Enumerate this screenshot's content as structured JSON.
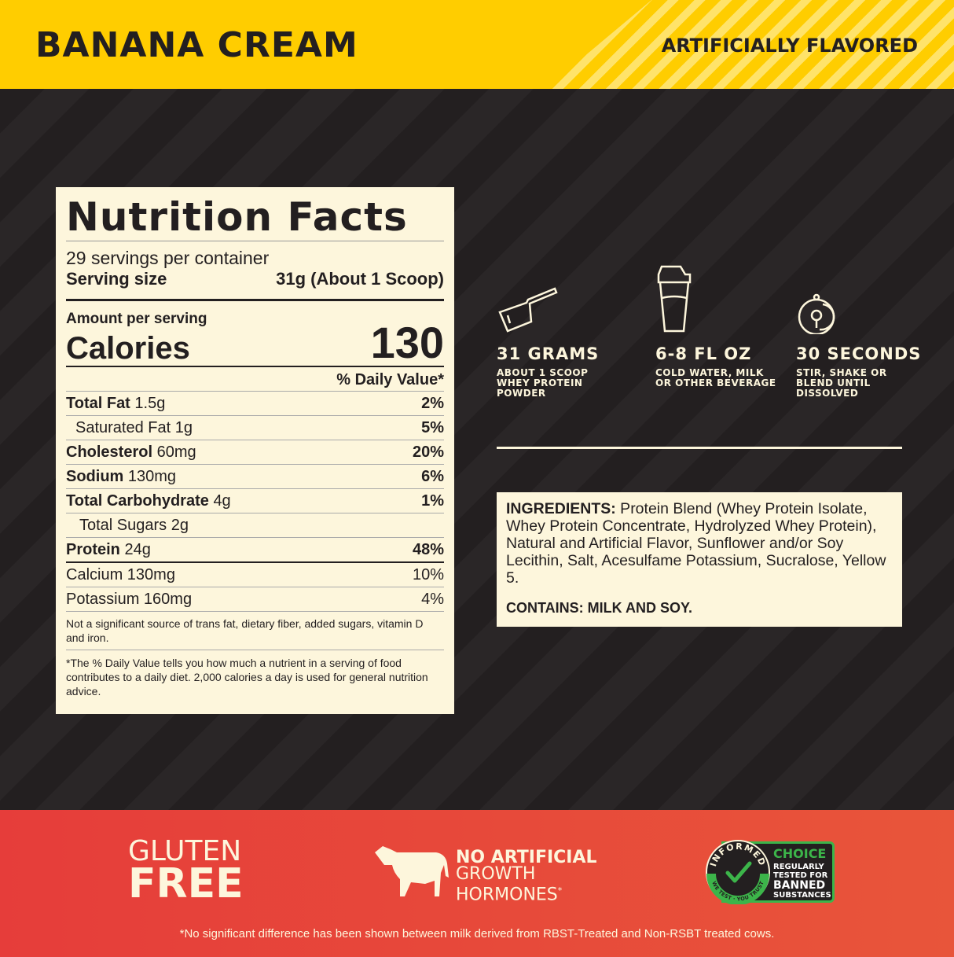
{
  "header": {
    "flavor": "BANANA CREAM",
    "flavor_note": "ARTIFICIALLY FLAVORED"
  },
  "nutrition": {
    "title": "Nutrition Facts",
    "servings": "29 servings per container",
    "serving_size_label": "Serving size",
    "serving_size": "31g (About 1 Scoop)",
    "amount_label": "Amount per serving",
    "calories_label": "Calories",
    "calories": "130",
    "dv_header": "% Daily Value*",
    "rows": [
      {
        "name": "Total Fat",
        "amount": "1.5g",
        "dv": "2%",
        "bold": true
      },
      {
        "name": "Saturated Fat",
        "amount": "1g",
        "dv": "5%",
        "bold": false
      },
      {
        "name": "Cholesterol",
        "amount": "60mg",
        "dv": "20%",
        "bold": true
      },
      {
        "name": "Sodium",
        "amount": "130mg",
        "dv": "6%",
        "bold": true
      },
      {
        "name": "Total Carbohydrate",
        "amount": "4g",
        "dv": "1%",
        "bold": true
      },
      {
        "name": "Total Sugars",
        "amount": "2g",
        "dv": "",
        "bold": false
      },
      {
        "name": "Protein",
        "amount": "24g",
        "dv": "48%",
        "bold": true
      }
    ],
    "minerals": [
      {
        "name": "Calcium 130mg",
        "dv": "10%"
      },
      {
        "name": "Potassium 160mg",
        "dv": "4%"
      }
    ],
    "note": "Not a significant source of trans fat, dietary fiber, added sugars, vitamin D and iron.",
    "footnote": "*The % Daily Value tells you how much a nutrient in a serving of food contributes to a daily diet. 2,000 calories a day is used for general nutrition advice."
  },
  "directions": [
    {
      "icon": "scoop-icon",
      "title": "31 GRAMS",
      "text": "ABOUT 1 SCOOP WHEY PROTEIN POWDER"
    },
    {
      "icon": "shaker-icon",
      "title": "6-8 FL OZ",
      "text": "COLD WATER, MILK OR OTHER BEVERAGE"
    },
    {
      "icon": "timer-icon",
      "title": "30 SECONDS",
      "text": "STIR, SHAKE OR BLEND UNTIL DISSOLVED"
    }
  ],
  "ingredients": {
    "label": "INGREDIENTS:",
    "text": " Protein Blend (Whey Protein Isolate, Whey Protein Concentrate, Hydrolyzed Whey Protein), Natural and Artificial Flavor, Sunflower and/or Soy Lecithin, Salt, Acesulfame Potassium, Sucralose, Yellow 5.",
    "contains": "CONTAINS: MILK AND SOY."
  },
  "badges": {
    "gluten1": "GLUTEN",
    "gluten2": "FREE",
    "nah1": "NO ARTIFICIAL",
    "nah2": "GROWTH",
    "nah3": "HORMONES",
    "nah_mark": "*",
    "informed_ring": "INFORMED",
    "informed_sub": "WE TEST · YOU TRUST",
    "choice": "CHOICE",
    "choice_text1": "REGULARLY",
    "choice_text2": "TESTED FOR",
    "choice_text3": "BANNED",
    "choice_text4": "SUBSTANCES"
  },
  "footnote": "*No significant difference has been shown between milk derived from RBST-Treated and Non-RSBT treated cows.",
  "colors": {
    "yellow": "#ffcd00",
    "dark": "#231f20",
    "cream": "#fdf6dc",
    "red": "#e6453a",
    "green": "#3cb54a"
  }
}
